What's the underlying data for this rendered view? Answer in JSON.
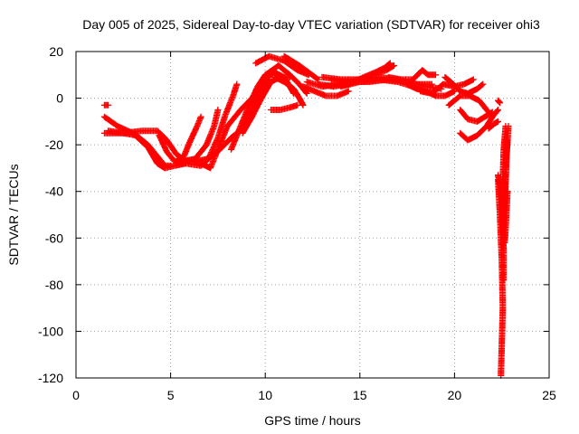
{
  "chart_data": {
    "type": "scatter",
    "title": "Day 005 of 2025, Sidereal Day-to-day VTEC variation (SDTVAR) for receiver ohi3",
    "xlabel": "GPS time / hours",
    "ylabel": "SDTVAR / TECUs",
    "xlim": [
      0,
      25
    ],
    "ylim": [
      -120,
      20
    ],
    "xticks": [
      0,
      5,
      10,
      15,
      20,
      25
    ],
    "yticks": [
      -120,
      -100,
      -80,
      -60,
      -40,
      -20,
      0,
      20
    ],
    "grid": true,
    "marker": "+",
    "series": [
      {
        "name": "SDTVAR",
        "color": "#ff0000",
        "tracks": [
          [
            [
              1.5,
              -15
            ],
            [
              2.5,
              -15
            ],
            [
              3.5,
              -14
            ],
            [
              4.3,
              -14
            ],
            [
              4.8,
              -18
            ],
            [
              5.3,
              -24
            ],
            [
              5.8,
              -27
            ],
            [
              6.4,
              -27
            ],
            [
              7.0,
              -26
            ]
          ],
          [
            [
              1.5,
              -8
            ],
            [
              2.2,
              -12
            ],
            [
              3.0,
              -15
            ],
            [
              3.8,
              -21
            ],
            [
              4.3,
              -28
            ],
            [
              4.7,
              -30
            ],
            [
              5.2,
              -29
            ],
            [
              5.8,
              -28
            ]
          ],
          [
            [
              1.5,
              -3
            ],
            [
              1.7,
              -3
            ]
          ],
          [
            [
              1.7,
              -14
            ],
            [
              2.5,
              -15
            ],
            [
              3.2,
              -16
            ],
            [
              3.8,
              -20
            ],
            [
              4.3,
              -25
            ],
            [
              4.7,
              -29
            ],
            [
              5.0,
              -29
            ]
          ],
          [
            [
              4.4,
              -16
            ],
            [
              4.8,
              -23
            ],
            [
              5.2,
              -27
            ],
            [
              5.6,
              -28
            ]
          ],
          [
            [
              5.3,
              -27
            ],
            [
              5.7,
              -25
            ],
            [
              6.0,
              -19
            ],
            [
              6.4,
              -12
            ],
            [
              6.6,
              -8
            ]
          ],
          [
            [
              5.7,
              -27
            ],
            [
              6.3,
              -26
            ],
            [
              6.9,
              -20
            ],
            [
              7.3,
              -12
            ],
            [
              7.5,
              -5
            ]
          ],
          [
            [
              5.8,
              -28
            ],
            [
              6.6,
              -29
            ],
            [
              7.0,
              -26
            ],
            [
              7.5,
              -17
            ],
            [
              7.9,
              -7
            ],
            [
              8.3,
              1
            ],
            [
              8.5,
              6
            ]
          ],
          [
            [
              6.6,
              -28
            ],
            [
              7.1,
              -30
            ],
            [
              7.5,
              -22
            ],
            [
              8.0,
              -12
            ],
            [
              8.7,
              -5
            ],
            [
              9.3,
              0
            ],
            [
              9.7,
              3
            ]
          ],
          [
            [
              7.0,
              -26
            ],
            [
              7.6,
              -22
            ],
            [
              8.2,
              -17
            ],
            [
              8.8,
              -13
            ],
            [
              9.3,
              -5
            ],
            [
              9.8,
              3
            ],
            [
              10.2,
              8
            ]
          ],
          [
            [
              8.2,
              -22
            ],
            [
              8.7,
              -12
            ],
            [
              9.2,
              -2
            ],
            [
              9.6,
              5
            ],
            [
              10.0,
              10
            ],
            [
              10.4,
              12
            ]
          ],
          [
            [
              8.8,
              -15
            ],
            [
              9.3,
              -8
            ],
            [
              9.8,
              0
            ],
            [
              10.3,
              7
            ],
            [
              10.8,
              9
            ],
            [
              11.3,
              9
            ]
          ],
          [
            [
              9.3,
              -3
            ],
            [
              9.7,
              4
            ],
            [
              10.1,
              9
            ],
            [
              10.5,
              11
            ],
            [
              11.0,
              9
            ],
            [
              11.3,
              5
            ],
            [
              11.5,
              2
            ]
          ],
          [
            [
              9.5,
              15
            ],
            [
              10.2,
              18
            ],
            [
              11.0,
              16
            ],
            [
              11.7,
              12
            ],
            [
              12.3,
              10
            ]
          ],
          [
            [
              10.2,
              11
            ],
            [
              10.7,
              14
            ],
            [
              11.3,
              10
            ],
            [
              11.8,
              6
            ],
            [
              12.2,
              2
            ]
          ],
          [
            [
              10.5,
              9
            ],
            [
              11.0,
              7
            ],
            [
              11.5,
              4
            ],
            [
              11.8,
              0
            ],
            [
              12.0,
              -3
            ]
          ],
          [
            [
              10.3,
              -5
            ],
            [
              10.8,
              -5
            ],
            [
              11.3,
              -4
            ],
            [
              11.7,
              -3
            ]
          ],
          [
            [
              11.0,
              18
            ],
            [
              11.8,
              14
            ],
            [
              12.3,
              11
            ],
            [
              12.8,
              8
            ]
          ],
          [
            [
              12.0,
              5
            ],
            [
              12.6,
              3
            ],
            [
              13.2,
              1
            ],
            [
              13.8,
              1
            ],
            [
              14.4,
              3
            ]
          ],
          [
            [
              12.2,
              7
            ],
            [
              13.0,
              5
            ],
            [
              14.0,
              6
            ],
            [
              15.0,
              8
            ],
            [
              15.7,
              10
            ],
            [
              16.4,
              12
            ],
            [
              16.8,
              14
            ]
          ],
          [
            [
              12.8,
              6
            ],
            [
              13.6,
              5
            ],
            [
              14.4,
              6
            ],
            [
              15.2,
              9
            ],
            [
              15.8,
              11
            ],
            [
              16.3,
              13
            ],
            [
              16.6,
              15
            ]
          ],
          [
            [
              13.0,
              9
            ],
            [
              14.0,
              8
            ],
            [
              15.0,
              8
            ],
            [
              16.0,
              9
            ],
            [
              17.0,
              8
            ],
            [
              18.0,
              6
            ],
            [
              18.8,
              6
            ]
          ],
          [
            [
              13.5,
              8
            ],
            [
              14.5,
              7
            ],
            [
              15.5,
              7
            ],
            [
              16.5,
              8
            ],
            [
              17.5,
              7
            ],
            [
              18.5,
              5
            ],
            [
              19.3,
              4
            ]
          ],
          [
            [
              14.0,
              5
            ],
            [
              15.0,
              7
            ],
            [
              16.0,
              8
            ],
            [
              17.0,
              7
            ],
            [
              17.8,
              5
            ],
            [
              18.4,
              3
            ]
          ],
          [
            [
              16.5,
              9
            ],
            [
              17.2,
              8
            ],
            [
              17.8,
              8
            ],
            [
              18.3,
              12
            ],
            [
              18.6,
              10
            ],
            [
              19.0,
              10
            ]
          ],
          [
            [
              17.5,
              6
            ],
            [
              18.0,
              4
            ],
            [
              18.5,
              3
            ],
            [
              19.0,
              1
            ],
            [
              19.5,
              1
            ],
            [
              20.0,
              3
            ]
          ],
          [
            [
              18.2,
              3
            ],
            [
              18.8,
              2
            ],
            [
              19.4,
              6
            ],
            [
              20.0,
              5
            ],
            [
              20.5,
              6
            ],
            [
              21.0,
              8
            ]
          ],
          [
            [
              19.5,
              9
            ],
            [
              19.8,
              7
            ],
            [
              20.3,
              3
            ],
            [
              20.7,
              2
            ],
            [
              21.2,
              4
            ],
            [
              21.5,
              6
            ]
          ],
          [
            [
              19.7,
              -3
            ],
            [
              20.3,
              1
            ],
            [
              20.8,
              1
            ],
            [
              21.3,
              -1
            ],
            [
              21.7,
              -5
            ],
            [
              22.0,
              -8
            ]
          ],
          [
            [
              20.3,
              -5
            ],
            [
              20.7,
              -9
            ],
            [
              21.2,
              -10
            ],
            [
              21.6,
              -8
            ],
            [
              22.0,
              -6
            ]
          ],
          [
            [
              20.3,
              -15
            ],
            [
              20.7,
              -18
            ],
            [
              21.2,
              -16
            ],
            [
              21.7,
              -12
            ],
            [
              22.0,
              -8
            ],
            [
              22.3,
              -5
            ]
          ],
          [
            [
              21.8,
              -13
            ],
            [
              22.1,
              -11
            ],
            [
              22.3,
              -10
            ]
          ],
          [
            [
              22.3,
              -1
            ],
            [
              22.4,
              -2
            ]
          ],
          [
            [
              22.3,
              -35
            ],
            [
              22.4,
              -50
            ],
            [
              22.5,
              -70
            ],
            [
              22.55,
              -90
            ],
            [
              22.5,
              -105
            ],
            [
              22.45,
              -119
            ]
          ],
          [
            [
              22.3,
              -33
            ],
            [
              22.4,
              -38
            ],
            [
              22.5,
              -45
            ]
          ],
          [
            [
              22.7,
              -12
            ],
            [
              22.6,
              -22
            ],
            [
              22.55,
              -35
            ],
            [
              22.5,
              -48
            ],
            [
              22.55,
              -58
            ],
            [
              22.6,
              -65
            ],
            [
              22.6,
              -78
            ]
          ],
          [
            [
              22.85,
              -12
            ],
            [
              22.75,
              -25
            ],
            [
              22.7,
              -38
            ],
            [
              22.65,
              -48
            ],
            [
              22.6,
              -55
            ],
            [
              22.6,
              -60
            ]
          ],
          [
            [
              22.8,
              -18
            ],
            [
              22.7,
              -30
            ],
            [
              22.65,
              -42
            ],
            [
              22.6,
              -50
            ]
          ],
          [
            [
              22.8,
              -40
            ],
            [
              22.75,
              -48
            ],
            [
              22.7,
              -56
            ],
            [
              22.65,
              -62
            ]
          ]
        ]
      }
    ]
  }
}
